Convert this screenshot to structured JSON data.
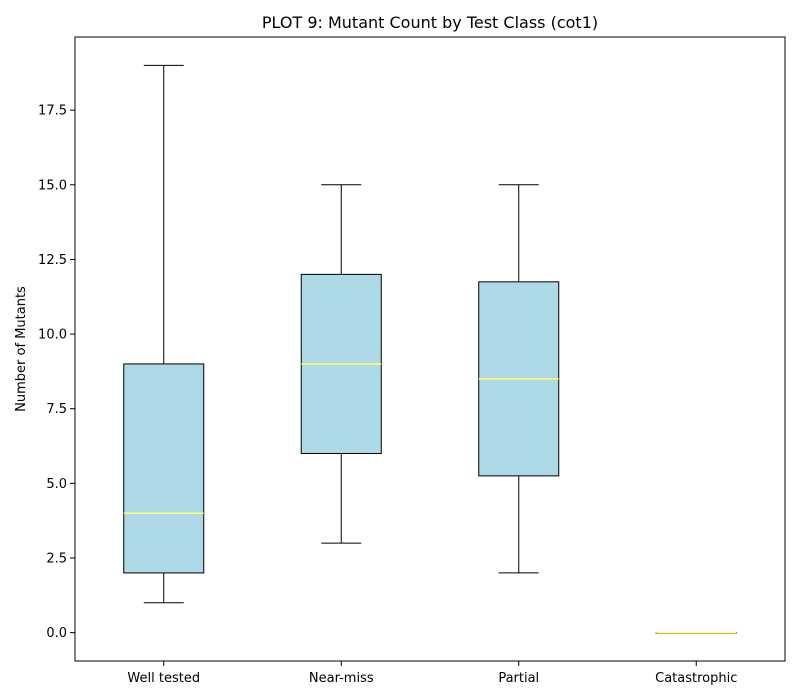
{
  "chart_data": {
    "type": "box",
    "title": "PLOT 9: Mutant Count by Test Class (cot1)",
    "xlabel": "",
    "ylabel": "Number of Mutants",
    "ylim": [
      -0.95,
      19.95
    ],
    "yticks": [
      0.0,
      2.5,
      5.0,
      7.5,
      10.0,
      12.5,
      15.0,
      17.5
    ],
    "ytick_labels": [
      "0.0",
      "2.5",
      "5.0",
      "7.5",
      "10.0",
      "12.5",
      "15.0",
      "17.5"
    ],
    "categories": [
      "Well tested",
      "Near-miss",
      "Partial",
      "Catastrophic"
    ],
    "boxes": [
      {
        "category": "Well tested",
        "whisker_low": 1,
        "q1": 2,
        "median": 4,
        "q3": 9,
        "whisker_high": 19
      },
      {
        "category": "Near-miss",
        "whisker_low": 3,
        "q1": 6,
        "median": 9,
        "q3": 12,
        "whisker_high": 15
      },
      {
        "category": "Partial",
        "whisker_low": 2,
        "q1": 5.25,
        "median": 8.5,
        "q3": 11.75,
        "whisker_high": 15
      },
      {
        "category": "Catastrophic",
        "whisker_low": 0,
        "q1": 0,
        "median": 0,
        "q3": 0,
        "whisker_high": 0
      }
    ],
    "grid": false,
    "colors": {
      "box_fill": "#add8e6",
      "box_edge": "#000000",
      "median": "#ffff66",
      "whisker": "#000000"
    }
  }
}
